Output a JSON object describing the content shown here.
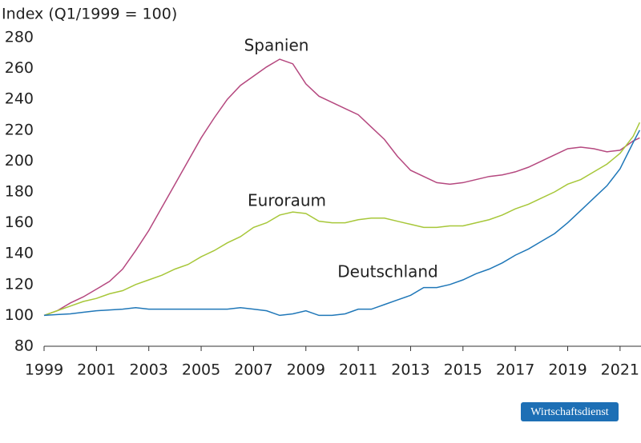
{
  "chart_data": {
    "type": "line",
    "y_label": "Index (Q1/1999 = 100)",
    "logo": "Wirtschaftsdienst",
    "x": [
      1999,
      1999.5,
      2000,
      2000.5,
      2001,
      2001.5,
      2002,
      2002.5,
      2003,
      2003.5,
      2004,
      2004.5,
      2005,
      2005.5,
      2006,
      2006.5,
      2007,
      2007.5,
      2008,
      2008.5,
      2009,
      2009.5,
      2010,
      2010.5,
      2011,
      2011.5,
      2012,
      2012.5,
      2013,
      2013.5,
      2014,
      2014.5,
      2015,
      2015.5,
      2016,
      2016.5,
      2017,
      2017.5,
      2018,
      2018.5,
      2019,
      2019.5,
      2020,
      2020.5,
      2021,
      2021.5,
      2021.75
    ],
    "series": [
      {
        "name": "Spanien",
        "color": "#b5487f",
        "values": [
          100,
          103,
          108,
          112,
          117,
          122,
          130,
          142,
          155,
          170,
          185,
          200,
          215,
          228,
          240,
          249,
          255,
          261,
          266,
          263,
          250,
          242,
          238,
          234,
          230,
          222,
          214,
          203,
          194,
          190,
          186,
          185,
          186,
          188,
          190,
          191,
          193,
          196,
          200,
          204,
          208,
          209,
          208,
          206,
          207,
          213,
          215
        ]
      },
      {
        "name": "Euroraum",
        "color": "#a7c739",
        "values": [
          100,
          103,
          106,
          109,
          111,
          114,
          116,
          120,
          123,
          126,
          130,
          133,
          138,
          142,
          147,
          151,
          157,
          160,
          165,
          167,
          166,
          161,
          160,
          160,
          162,
          163,
          163,
          161,
          159,
          157,
          157,
          158,
          158,
          160,
          162,
          165,
          169,
          172,
          176,
          180,
          185,
          188,
          193,
          198,
          205,
          216,
          225
        ]
      },
      {
        "name": "Deutschland",
        "color": "#1f77b8",
        "values": [
          100,
          100.5,
          101,
          102,
          103,
          103.5,
          104,
          105,
          104,
          104,
          104,
          104,
          104,
          104,
          104,
          105,
          104,
          103,
          100,
          101,
          103,
          100,
          100,
          101,
          104,
          104,
          107,
          110,
          113,
          118,
          118,
          120,
          123,
          127,
          130,
          134,
          139,
          143,
          148,
          153,
          160,
          168,
          176,
          184,
          195,
          212,
          220
        ]
      }
    ],
    "xlim": [
      1999,
      2021.8
    ],
    "xticks": [
      1999,
      2001,
      2003,
      2005,
      2007,
      2009,
      2011,
      2013,
      2015,
      2017,
      2019,
      2021
    ],
    "ylim": [
      80,
      280
    ],
    "yticks": [
      80,
      100,
      120,
      140,
      160,
      180,
      200,
      220,
      240,
      260,
      280
    ],
    "grid": false
  }
}
